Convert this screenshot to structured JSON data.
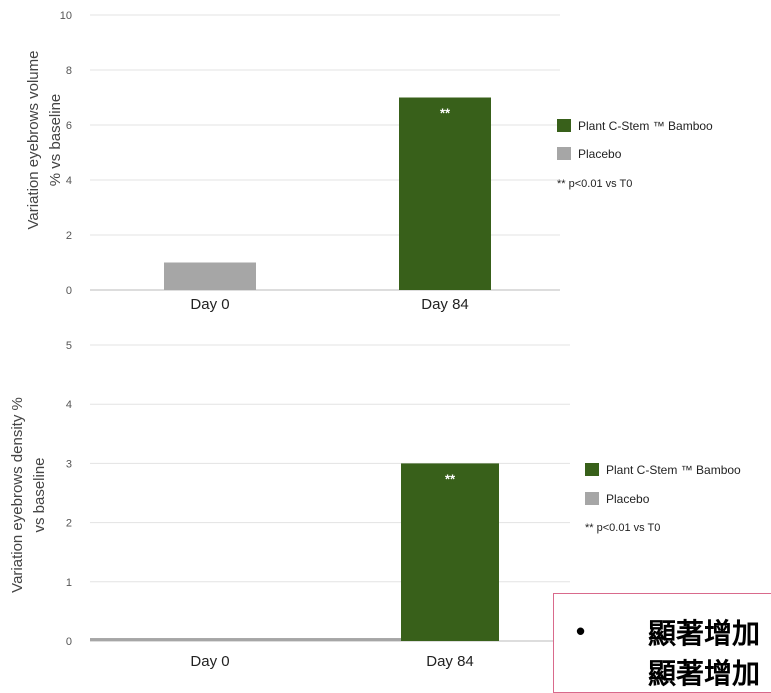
{
  "chart_data": [
    {
      "type": "bar",
      "categories": [
        "Day 0",
        "Day 84"
      ],
      "series": [
        {
          "name": "Placebo",
          "color": "#a6a6a6",
          "values": [
            1,
            null
          ]
        },
        {
          "name": "Plant C-Stem ™ Bamboo",
          "color": "#38601a",
          "values": [
            null,
            7
          ]
        }
      ],
      "ylabel_line1": "Variation eyebrows volume",
      "ylabel_line2": "% vs baseline",
      "ylim": [
        0,
        10
      ],
      "yticks": [
        0,
        2,
        4,
        6,
        8,
        10
      ],
      "annotations": [
        {
          "category": "Day 84",
          "text": "**"
        }
      ],
      "legend": [
        {
          "label": "Plant C-Stem ™ Bamboo",
          "color": "#38601a"
        },
        {
          "label": "Placebo",
          "color": "#a6a6a6"
        }
      ],
      "footnote": "** p<0.01 vs T0",
      "grid": true,
      "legend_position": "right"
    },
    {
      "type": "bar",
      "categories": [
        "Day 0",
        "Day 84"
      ],
      "series": [
        {
          "name": "Placebo",
          "color": "#a6a6a6",
          "values": [
            0.05,
            null
          ]
        },
        {
          "name": "Plant C-Stem ™ Bamboo",
          "color": "#38601a",
          "values": [
            null,
            3
          ]
        }
      ],
      "ylabel_line1": "Variation eyebrows density %",
      "ylabel_line2": "vs baseline",
      "ylim": [
        0,
        5
      ],
      "yticks": [
        0,
        1,
        2,
        3,
        4,
        5
      ],
      "annotations": [
        {
          "category": "Day 84",
          "text": "**"
        }
      ],
      "legend": [
        {
          "label": "Plant C-Stem ™ Bamboo",
          "color": "#38601a"
        },
        {
          "label": "Placebo",
          "color": "#a6a6a6"
        }
      ],
      "footnote": "** p<0.01 vs T0",
      "grid": true,
      "legend_position": "right"
    }
  ],
  "callout": {
    "bullet": "•",
    "line1": "顯著增加",
    "line2": "顯著增加"
  }
}
